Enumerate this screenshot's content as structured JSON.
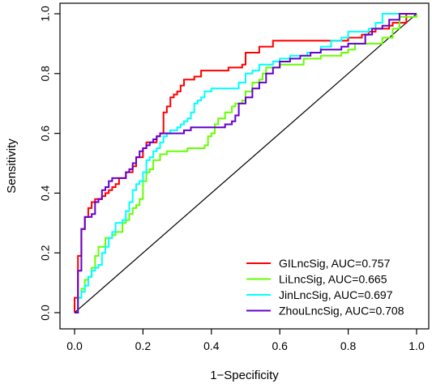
{
  "chart_data": {
    "type": "line",
    "title": "",
    "xlabel": "1−Specificity",
    "ylabel": "Sensitivity",
    "xlim": [
      0,
      1
    ],
    "ylim": [
      0,
      1
    ],
    "xticks": [
      "0.0",
      "0.2",
      "0.4",
      "0.6",
      "0.8",
      "1.0"
    ],
    "yticks": [
      "0.0",
      "0.2",
      "0.4",
      "0.6",
      "0.8",
      "1.0"
    ],
    "grid": false,
    "legend_position": "bottom-right",
    "reference_line": {
      "from": [
        0,
        0
      ],
      "to": [
        1,
        1
      ],
      "color": "#000000"
    },
    "series": [
      {
        "name": "GILncSig, AUC=0.757",
        "color": "#ff0000",
        "x": [
          0,
          0,
          0.01,
          0.01,
          0.02,
          0.02,
          0.03,
          0.03,
          0.04,
          0.05,
          0.06,
          0.07,
          0.08,
          0.09,
          0.1,
          0.11,
          0.12,
          0.13,
          0.14,
          0.15,
          0.16,
          0.17,
          0.18,
          0.19,
          0.2,
          0.21,
          0.22,
          0.23,
          0.24,
          0.25,
          0.26,
          0.26,
          0.27,
          0.27,
          0.28,
          0.29,
          0.3,
          0.31,
          0.32,
          0.33,
          0.35,
          0.37,
          0.39,
          0.41,
          0.43,
          0.45,
          0.47,
          0.49,
          0.5,
          0.5,
          0.52,
          0.54,
          0.56,
          0.58,
          0.6,
          0.62,
          0.65,
          0.68,
          0.72,
          0.75,
          0.78,
          0.8,
          0.81,
          0.84,
          0.86,
          0.88,
          0.9,
          0.92,
          0.93,
          0.95,
          0.97,
          1.0
        ],
        "y": [
          0,
          0.05,
          0.08,
          0.19,
          0.19,
          0.28,
          0.3,
          0.32,
          0.35,
          0.37,
          0.38,
          0.38,
          0.39,
          0.4,
          0.41,
          0.42,
          0.43,
          0.45,
          0.45,
          0.47,
          0.47,
          0.49,
          0.52,
          0.52,
          0.55,
          0.57,
          0.57,
          0.57,
          0.59,
          0.6,
          0.61,
          0.67,
          0.67,
          0.69,
          0.72,
          0.73,
          0.74,
          0.76,
          0.78,
          0.78,
          0.79,
          0.81,
          0.81,
          0.81,
          0.81,
          0.82,
          0.82,
          0.83,
          0.83,
          0.87,
          0.87,
          0.89,
          0.89,
          0.91,
          0.91,
          0.91,
          0.91,
          0.91,
          0.91,
          0.91,
          0.91,
          0.92,
          0.92,
          0.93,
          0.94,
          0.95,
          0.95,
          0.96,
          0.97,
          0.97,
          1.0,
          1.0
        ]
      },
      {
        "name": "LiLncSig, AUC=0.665",
        "color": "#66ff00",
        "x": [
          0,
          0.01,
          0.02,
          0.03,
          0.04,
          0.05,
          0.06,
          0.07,
          0.08,
          0.09,
          0.1,
          0.11,
          0.12,
          0.14,
          0.15,
          0.16,
          0.17,
          0.18,
          0.19,
          0.2,
          0.21,
          0.22,
          0.23,
          0.25,
          0.27,
          0.3,
          0.33,
          0.35,
          0.37,
          0.38,
          0.39,
          0.4,
          0.41,
          0.42,
          0.44,
          0.46,
          0.47,
          0.48,
          0.49,
          0.5,
          0.52,
          0.53,
          0.54,
          0.55,
          0.56,
          0.58,
          0.6,
          0.64,
          0.67,
          0.7,
          0.72,
          0.75,
          0.78,
          0.8,
          0.82,
          0.86,
          0.9,
          0.93,
          0.95,
          0.97,
          1.0
        ],
        "y": [
          0,
          0.05,
          0.08,
          0.11,
          0.12,
          0.15,
          0.19,
          0.22,
          0.22,
          0.25,
          0.25,
          0.26,
          0.27,
          0.3,
          0.31,
          0.33,
          0.35,
          0.36,
          0.38,
          0.44,
          0.47,
          0.48,
          0.51,
          0.53,
          0.54,
          0.54,
          0.55,
          0.55,
          0.55,
          0.56,
          0.59,
          0.6,
          0.63,
          0.65,
          0.67,
          0.69,
          0.7,
          0.7,
          0.71,
          0.74,
          0.77,
          0.77,
          0.78,
          0.8,
          0.82,
          0.82,
          0.83,
          0.83,
          0.85,
          0.85,
          0.86,
          0.86,
          0.87,
          0.88,
          0.9,
          0.9,
          0.92,
          0.95,
          0.99,
          0.99,
          1.0
        ]
      },
      {
        "name": "JinLncSig, AUC=0.697",
        "color": "#00ffff",
        "x": [
          0,
          0.01,
          0.02,
          0.03,
          0.04,
          0.05,
          0.06,
          0.07,
          0.08,
          0.09,
          0.1,
          0.11,
          0.12,
          0.13,
          0.14,
          0.15,
          0.16,
          0.17,
          0.18,
          0.19,
          0.2,
          0.21,
          0.22,
          0.23,
          0.24,
          0.25,
          0.26,
          0.27,
          0.28,
          0.3,
          0.31,
          0.32,
          0.33,
          0.34,
          0.35,
          0.36,
          0.37,
          0.38,
          0.39,
          0.4,
          0.42,
          0.44,
          0.46,
          0.48,
          0.5,
          0.52,
          0.54,
          0.56,
          0.58,
          0.6,
          0.63,
          0.66,
          0.68,
          0.7,
          0.72,
          0.75,
          0.78,
          0.8,
          0.83,
          0.86,
          0.88,
          0.9,
          0.93,
          0.96,
          1.0
        ],
        "y": [
          0,
          0.05,
          0.07,
          0.09,
          0.12,
          0.14,
          0.15,
          0.16,
          0.2,
          0.22,
          0.25,
          0.27,
          0.3,
          0.3,
          0.31,
          0.34,
          0.37,
          0.41,
          0.43,
          0.44,
          0.47,
          0.51,
          0.52,
          0.54,
          0.55,
          0.57,
          0.59,
          0.6,
          0.61,
          0.62,
          0.63,
          0.64,
          0.65,
          0.67,
          0.7,
          0.71,
          0.72,
          0.74,
          0.74,
          0.75,
          0.75,
          0.75,
          0.75,
          0.77,
          0.8,
          0.81,
          0.83,
          0.83,
          0.84,
          0.85,
          0.86,
          0.86,
          0.87,
          0.87,
          0.89,
          0.91,
          0.92,
          0.94,
          0.94,
          0.95,
          0.97,
          1.0,
          1.0,
          1.0,
          1.0
        ]
      },
      {
        "name": "ZhouLncSig, AUC=0.708",
        "color": "#6600cc",
        "x": [
          0,
          0.01,
          0.02,
          0.03,
          0.04,
          0.05,
          0.06,
          0.07,
          0.08,
          0.09,
          0.1,
          0.11,
          0.12,
          0.13,
          0.14,
          0.15,
          0.16,
          0.17,
          0.18,
          0.19,
          0.2,
          0.21,
          0.22,
          0.23,
          0.24,
          0.25,
          0.27,
          0.3,
          0.32,
          0.34,
          0.36,
          0.38,
          0.4,
          0.42,
          0.44,
          0.46,
          0.47,
          0.48,
          0.5,
          0.52,
          0.54,
          0.56,
          0.58,
          0.6,
          0.63,
          0.66,
          0.69,
          0.72,
          0.75,
          0.78,
          0.8,
          0.82,
          0.85,
          0.87,
          0.9,
          0.92,
          0.95,
          1.0
        ],
        "y": [
          0,
          0.14,
          0.28,
          0.32,
          0.32,
          0.33,
          0.37,
          0.38,
          0.41,
          0.42,
          0.44,
          0.45,
          0.45,
          0.45,
          0.45,
          0.47,
          0.48,
          0.5,
          0.52,
          0.54,
          0.55,
          0.56,
          0.57,
          0.58,
          0.59,
          0.6,
          0.6,
          0.6,
          0.61,
          0.62,
          0.62,
          0.62,
          0.62,
          0.62,
          0.63,
          0.64,
          0.66,
          0.7,
          0.72,
          0.75,
          0.77,
          0.8,
          0.82,
          0.84,
          0.85,
          0.86,
          0.87,
          0.88,
          0.88,
          0.89,
          0.9,
          0.9,
          0.93,
          0.95,
          0.96,
          0.98,
          1.0,
          1.0
        ]
      }
    ]
  }
}
